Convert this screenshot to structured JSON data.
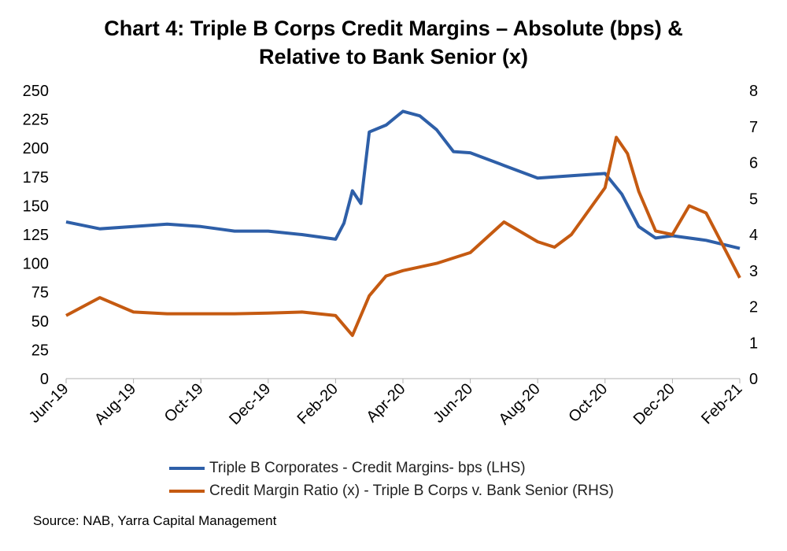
{
  "title_line1": "Chart 4: Triple B Corps Credit Margins – Absolute (bps) &",
  "title_line2": "Relative to Bank Senior (x)",
  "source": "Source: NAB, Yarra Capital Management",
  "chart_data": {
    "type": "line",
    "title": "Chart 4: Triple B Corps Credit Margins – Absolute (bps) & Relative to Bank Senior (x)",
    "x_tick_labels": [
      "Jun-19",
      "Aug-19",
      "Oct-19",
      "Dec-19",
      "Feb-20",
      "Apr-20",
      "Jun-20",
      "Aug-20",
      "Oct-20",
      "Dec-20",
      "Feb-21"
    ],
    "y_left": {
      "ticks": [
        "0",
        "25",
        "50",
        "75",
        "100",
        "125",
        "150",
        "175",
        "200",
        "225",
        "250"
      ],
      "min": 0,
      "max": 250
    },
    "y_right": {
      "ticks": [
        "0",
        "1",
        "2",
        "3",
        "4",
        "5",
        "6",
        "7",
        "8"
      ],
      "min": 0,
      "max": 8
    },
    "grid": false,
    "legend_position": "bottom",
    "series": [
      {
        "name": "Triple B Corporates - Credit Margins- bps (LHS)",
        "axis": "left",
        "color": "#2E5FA8",
        "x": [
          "Jun-19",
          "Jul-19",
          "Aug-19",
          "Sep-19",
          "Oct-19",
          "Oct-19",
          "Nov-19",
          "Dec-19",
          "Jan-20",
          "Feb-20",
          "Feb-20",
          "Feb-20",
          "Feb-20",
          "Mar-20",
          "Mar-20",
          "Apr-20",
          "Apr-20",
          "May-20",
          "May-20",
          "Jun-20",
          "Jul-20",
          "Aug-20",
          "Sep-20",
          "Oct-20",
          "Oct-20",
          "Nov-20",
          "Nov-20",
          "Dec-20",
          "Jan-21",
          "Feb-21"
        ],
        "values": [
          136,
          130,
          132,
          134,
          132,
          130,
          128,
          128,
          125,
          121,
          135,
          163,
          152,
          214,
          220,
          232,
          228,
          216,
          197,
          196,
          185,
          174,
          176,
          178,
          160,
          132,
          122,
          124,
          120,
          113
        ]
      },
      {
        "name": "Credit Margin Ratio (x) - Triple B Corps v. Bank Senior (RHS)",
        "axis": "right",
        "color": "#C55A11",
        "x": [
          "Jun-19",
          "Jul-19",
          "Aug-19",
          "Sep-19",
          "Oct-19",
          "Nov-19",
          "Dec-19",
          "Jan-20",
          "Feb-20",
          "Feb-20",
          "Mar-20",
          "Mar-20",
          "Apr-20",
          "May-20",
          "Jun-20",
          "Jul-20",
          "Aug-20",
          "Aug-20",
          "Sep-20",
          "Oct-20",
          "Oct-20",
          "Oct-20",
          "Nov-20",
          "Nov-20",
          "Dec-20",
          "Dec-20",
          "Jan-21",
          "Feb-21"
        ],
        "values": [
          1.75,
          2.25,
          1.85,
          1.8,
          1.8,
          1.8,
          1.82,
          1.85,
          1.75,
          1.2,
          2.3,
          2.85,
          3.0,
          3.2,
          3.5,
          4.35,
          3.8,
          3.65,
          4.0,
          5.3,
          6.7,
          6.25,
          5.2,
          4.1,
          4.0,
          4.8,
          4.6,
          2.8
        ]
      }
    ]
  }
}
